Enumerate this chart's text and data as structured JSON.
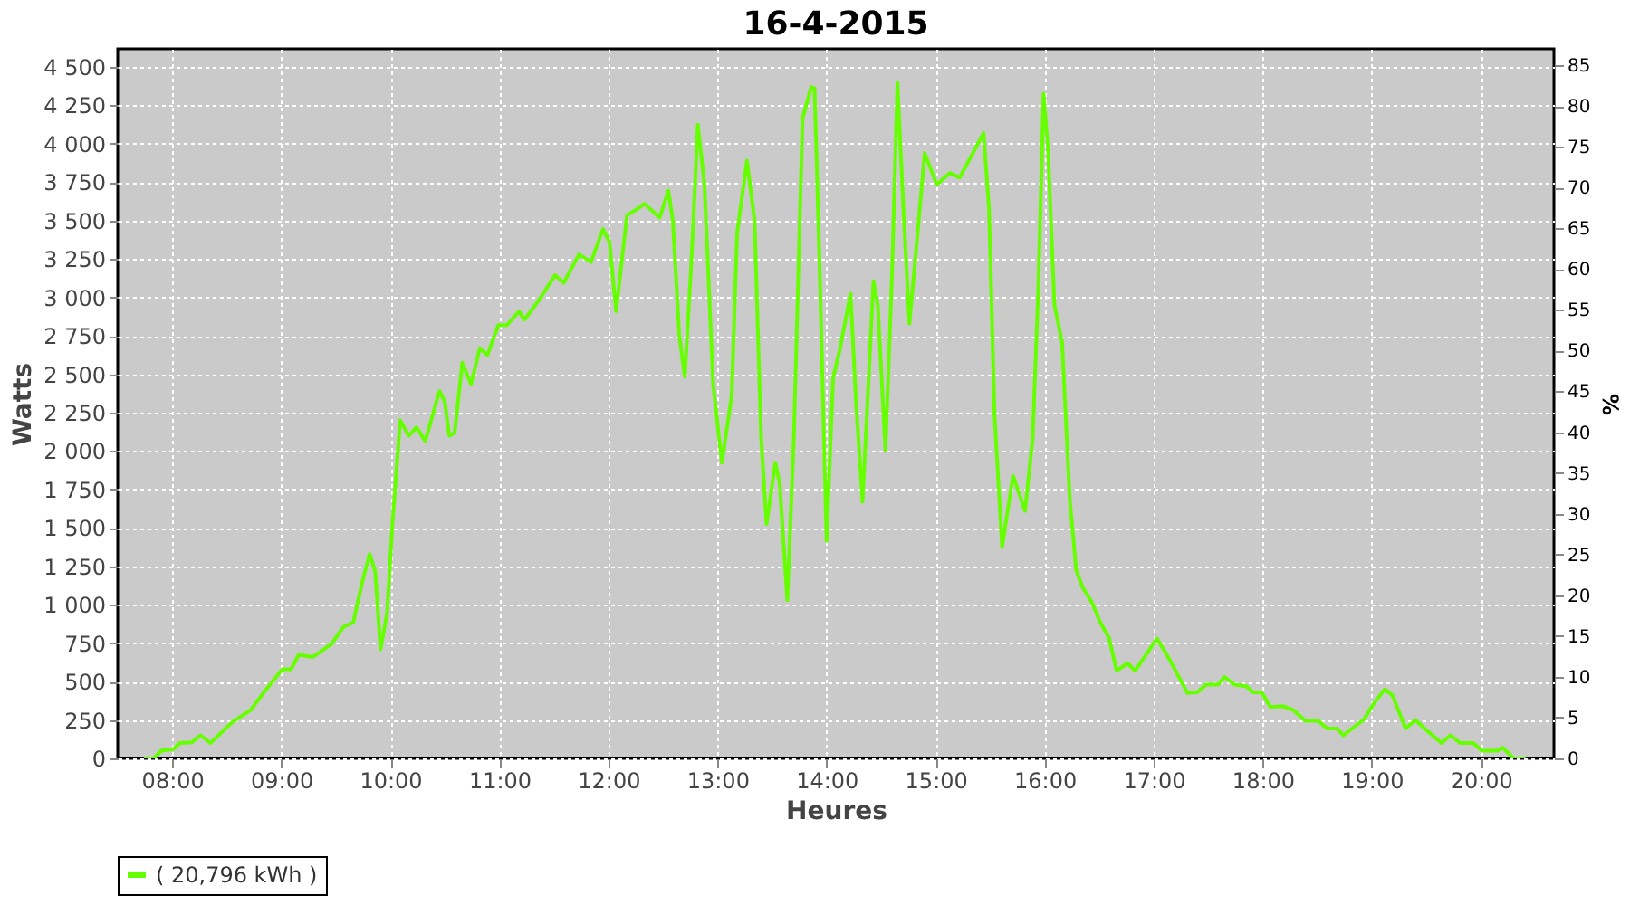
{
  "chart_data": {
    "type": "line",
    "title": "16-4-2015",
    "xlabel": "Heures",
    "ylabel": "Watts",
    "y2label": "%",
    "xlim": [
      7.5,
      20.67
    ],
    "xticks": [
      {
        "value": 8,
        "label": "08:00"
      },
      {
        "value": 9,
        "label": "09:00"
      },
      {
        "value": 10,
        "label": "10:00"
      },
      {
        "value": 11,
        "label": "11:00"
      },
      {
        "value": 12,
        "label": "12:00"
      },
      {
        "value": 13,
        "label": "13:00"
      },
      {
        "value": 14,
        "label": "14:00"
      },
      {
        "value": 15,
        "label": "15:00"
      },
      {
        "value": 16,
        "label": "16:00"
      },
      {
        "value": 17,
        "label": "17:00"
      },
      {
        "value": 18,
        "label": "18:00"
      },
      {
        "value": 19,
        "label": "19:00"
      },
      {
        "value": 20,
        "label": "20:00"
      }
    ],
    "ylim": [
      0,
      4618
    ],
    "yticks": [
      0,
      250,
      500,
      750,
      {
        "value": 1000,
        "label": "1 000"
      },
      {
        "value": 1250,
        "label": "1 250"
      },
      {
        "value": 1500,
        "label": "1 500"
      },
      {
        "value": 1750,
        "label": "1 750"
      },
      {
        "value": 2000,
        "label": "2 000"
      },
      {
        "value": 2250,
        "label": "2 250"
      },
      {
        "value": 2500,
        "label": "2 500"
      },
      {
        "value": 2750,
        "label": "2 750"
      },
      {
        "value": 3000,
        "label": "3 000"
      },
      {
        "value": 3250,
        "label": "3 250"
      },
      {
        "value": 3500,
        "label": "3 500"
      },
      {
        "value": 3750,
        "label": "3 750"
      },
      {
        "value": 4000,
        "label": "4 000"
      },
      {
        "value": 4250,
        "label": "4 250"
      },
      {
        "value": 4500,
        "label": "4 500"
      }
    ],
    "y2lim": [
      0,
      87
    ],
    "y2ticks": [
      0,
      5,
      10,
      15,
      20,
      25,
      30,
      35,
      40,
      45,
      50,
      55,
      60,
      65,
      70,
      75,
      80,
      85
    ],
    "grid": true,
    "legend": "bottom",
    "marker": "none",
    "line_style": "solid",
    "series": [
      {
        "name": "( 20,796 kWh )",
        "color": "#66ff00",
        "x": [
          7.74,
          7.83,
          7.9,
          8.01,
          8.07,
          8.18,
          8.26,
          8.35,
          8.55,
          8.72,
          8.84,
          9.01,
          9.09,
          9.16,
          9.29,
          9.46,
          9.57,
          9.66,
          9.74,
          9.81,
          9.86,
          9.91,
          9.97,
          10.02,
          10.09,
          10.17,
          10.24,
          10.32,
          10.45,
          10.5,
          10.54,
          10.59,
          10.66,
          10.74,
          10.82,
          10.89,
          10.99,
          11.07,
          11.18,
          11.23,
          11.36,
          11.51,
          11.59,
          11.73,
          11.84,
          11.95,
          12.01,
          12.07,
          12.17,
          12.24,
          12.33,
          12.47,
          12.55,
          12.59,
          12.65,
          12.7,
          12.76,
          12.82,
          12.88,
          12.96,
          13.04,
          13.13,
          13.18,
          13.27,
          13.34,
          13.4,
          13.45,
          13.53,
          13.57,
          13.64,
          13.7,
          13.78,
          13.86,
          13.89,
          13.94,
          14.0,
          14.06,
          14.12,
          14.22,
          14.27,
          14.33,
          14.43,
          14.47,
          14.54,
          14.6,
          14.65,
          14.71,
          14.76,
          14.82,
          14.9,
          15.01,
          15.13,
          15.22,
          15.35,
          15.44,
          15.49,
          15.54,
          15.61,
          15.71,
          15.82,
          15.89,
          15.94,
          15.99,
          16.03,
          16.09,
          16.16,
          16.23,
          16.29,
          16.35,
          16.43,
          16.51,
          16.59,
          16.66,
          16.76,
          16.83,
          17.03,
          17.14,
          17.31,
          17.4,
          17.48,
          17.59,
          17.65,
          17.74,
          17.85,
          17.91,
          17.99,
          18.07,
          18.19,
          18.28,
          18.39,
          18.51,
          18.59,
          18.68,
          18.74,
          18.93,
          19.02,
          19.12,
          19.19,
          19.31,
          19.4,
          19.49,
          19.64,
          19.72,
          19.81,
          19.93,
          20.01,
          20.15,
          20.2,
          20.3,
          20.41
        ],
        "values": [
          0,
          0,
          50,
          60,
          100,
          105,
          150,
          100,
          235,
          315,
          430,
          580,
          580,
          675,
          660,
          745,
          855,
          885,
          1140,
          1330,
          1220,
          710,
          945,
          1535,
          2200,
          2100,
          2155,
          2065,
          2390,
          2320,
          2100,
          2120,
          2575,
          2435,
          2670,
          2625,
          2820,
          2820,
          2910,
          2855,
          2980,
          3145,
          3095,
          3280,
          3230,
          3445,
          3360,
          2910,
          3535,
          3565,
          3610,
          3520,
          3695,
          3500,
          2750,
          2485,
          3225,
          4125,
          3735,
          2435,
          1925,
          2360,
          3420,
          3890,
          3500,
          2085,
          1525,
          1925,
          1790,
          1030,
          2085,
          4165,
          4370,
          4360,
          3105,
          1415,
          2475,
          2655,
          3025,
          2320,
          1670,
          3105,
          2950,
          2005,
          3145,
          4400,
          3500,
          2830,
          3300,
          3940,
          3735,
          3810,
          3780,
          3950,
          4070,
          3575,
          2240,
          1375,
          1840,
          1610,
          2085,
          3025,
          4325,
          3970,
          2950,
          2710,
          1690,
          1220,
          1110,
          1020,
          885,
          785,
          570,
          620,
          570,
          780,
          650,
          425,
          430,
          480,
          480,
          530,
          480,
          470,
          430,
          430,
          335,
          340,
          315,
          245,
          245,
          195,
          195,
          150,
          255,
          360,
          450,
          410,
          195,
          250,
          190,
          100,
          150,
          100,
          100,
          50,
          50,
          70,
          0,
          0
        ]
      }
    ]
  }
}
